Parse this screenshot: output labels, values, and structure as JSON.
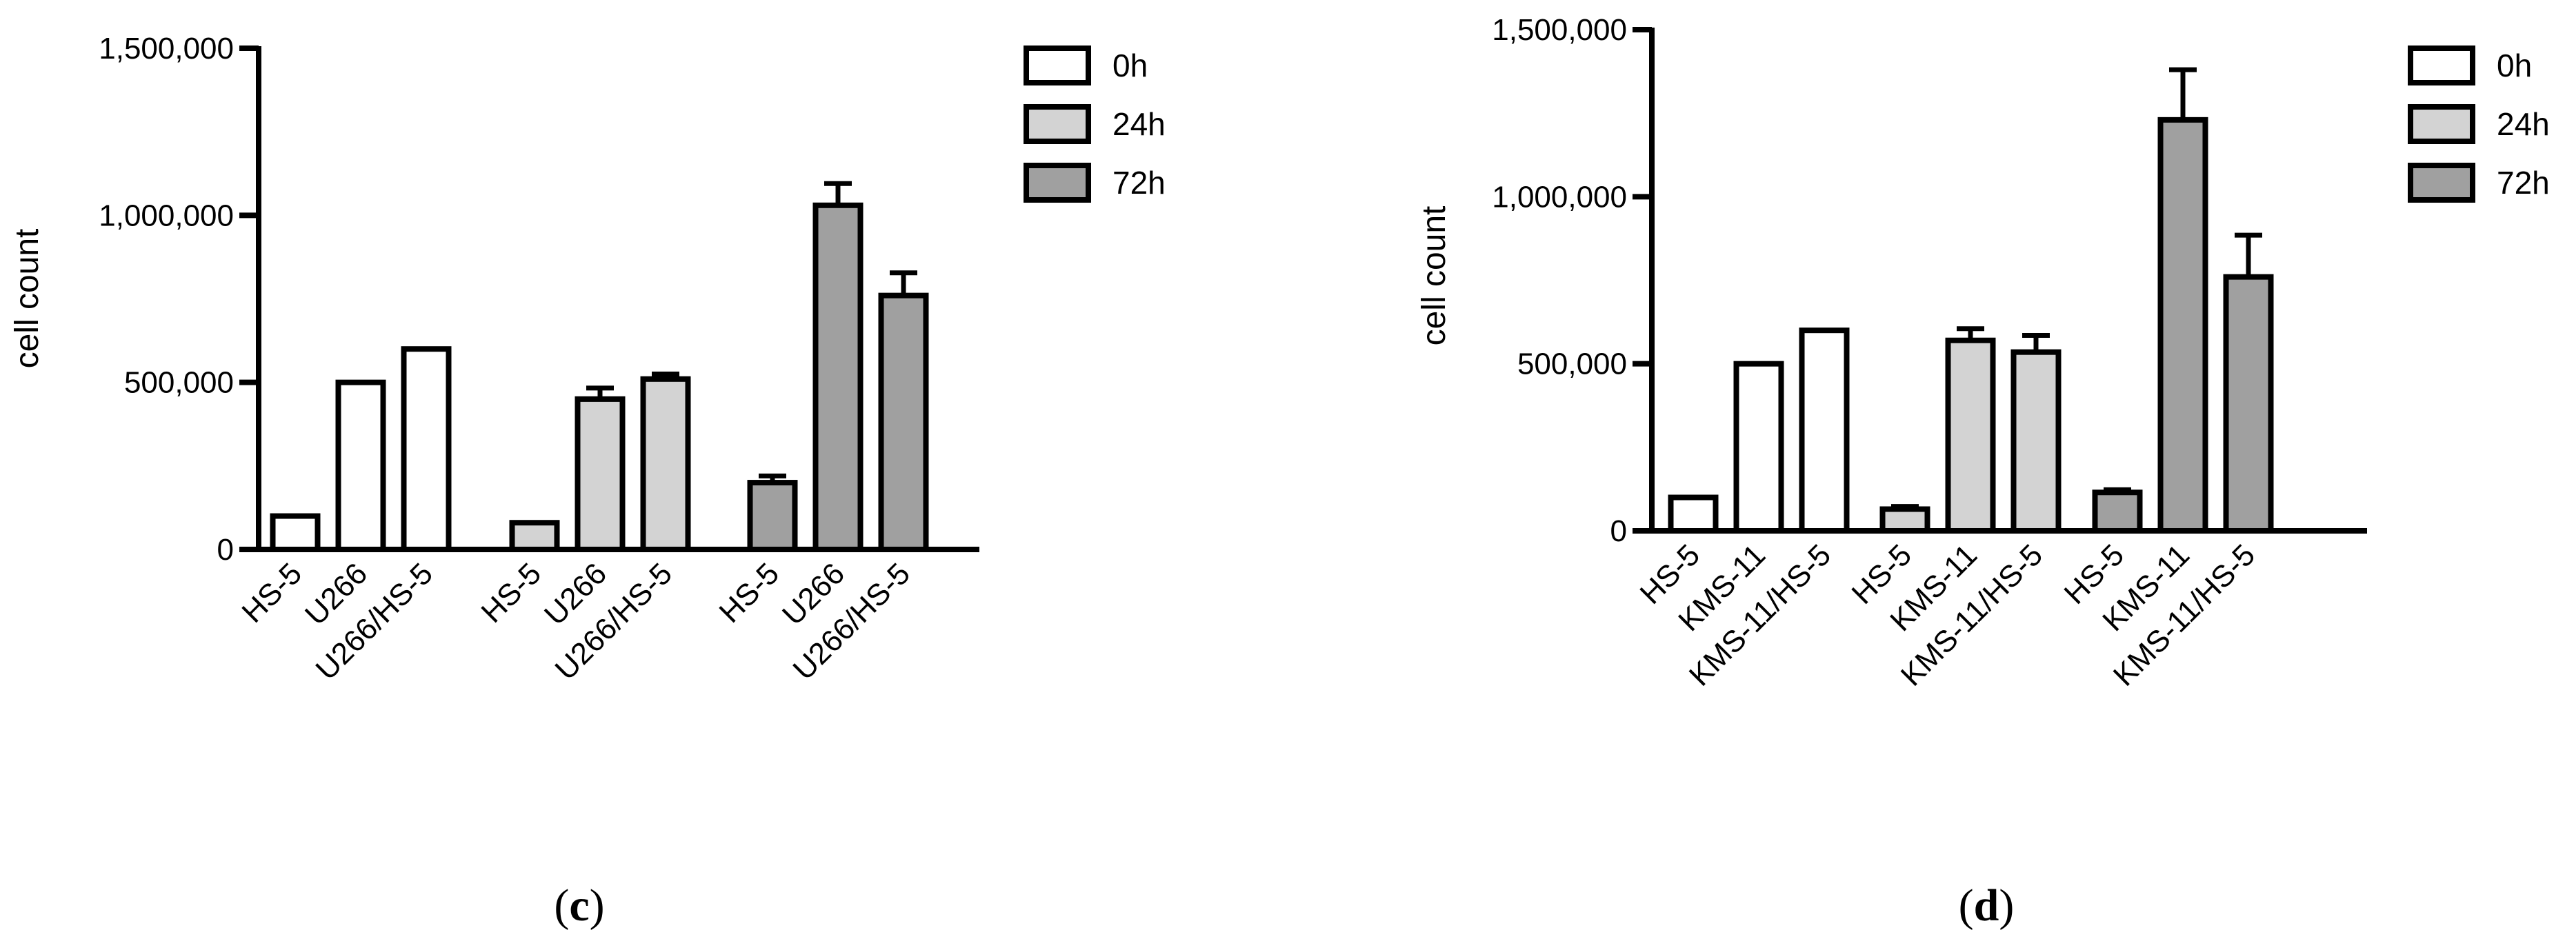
{
  "chart_data": [
    {
      "type": "bar",
      "panel_label": "(c)",
      "panel_label_parts": [
        "(",
        "c",
        ")"
      ],
      "ylabel": "cell count",
      "ylim": [
        0,
        1500000
      ],
      "yticks": [
        0,
        500000,
        1000000,
        1500000
      ],
      "ytick_labels": [
        "0",
        "500,000",
        "1,000,000",
        "1,500,000"
      ],
      "legend": {
        "position": "top-right",
        "entries": [
          "0h",
          "24h",
          "72h"
        ]
      },
      "groups": [
        {
          "name": "0h",
          "color": "#ffffff",
          "categories": [
            "HS-5",
            "U266",
            "U266/HS-5"
          ],
          "values": [
            100000,
            500000,
            600000
          ],
          "errors": [
            0,
            0,
            0
          ]
        },
        {
          "name": "24h",
          "color": "#d3d3d3",
          "categories": [
            "HS-5",
            "U266",
            "U266/HS-5"
          ],
          "values": [
            80000,
            450000,
            510000
          ],
          "errors": [
            0,
            33000,
            15000
          ]
        },
        {
          "name": "72h",
          "color": "#a0a0a0",
          "categories": [
            "HS-5",
            "U266",
            "U266/HS-5"
          ],
          "values": [
            200000,
            1030000,
            760000
          ],
          "errors": [
            20000,
            65000,
            68000
          ]
        }
      ]
    },
    {
      "type": "bar",
      "panel_label": "(d)",
      "panel_label_parts": [
        "(",
        "d",
        ")"
      ],
      "ylabel": "cell count",
      "ylim": [
        0,
        1500000
      ],
      "yticks": [
        0,
        500000,
        1000000,
        1500000
      ],
      "ytick_labels": [
        "0",
        "500,000",
        "1,000,000",
        "1,500,000"
      ],
      "legend": {
        "position": "top-right",
        "entries": [
          "0h",
          "24h",
          "72h"
        ]
      },
      "groups": [
        {
          "name": "0h",
          "color": "#ffffff",
          "categories": [
            "HS-5",
            "KMS-11",
            "KMS-11/HS-5"
          ],
          "values": [
            100000,
            500000,
            600000
          ],
          "errors": [
            0,
            0,
            0
          ]
        },
        {
          "name": "24h",
          "color": "#d3d3d3",
          "categories": [
            "HS-5",
            "KMS-11",
            "KMS-11/HS-5"
          ],
          "values": [
            65000,
            570000,
            535000
          ],
          "errors": [
            8000,
            35000,
            50000
          ]
        },
        {
          "name": "72h",
          "color": "#a0a0a0",
          "categories": [
            "HS-5",
            "KMS-11",
            "KMS-11/HS-5"
          ],
          "values": [
            115000,
            1230000,
            760000
          ],
          "errors": [
            8000,
            150000,
            125000
          ]
        }
      ]
    }
  ]
}
